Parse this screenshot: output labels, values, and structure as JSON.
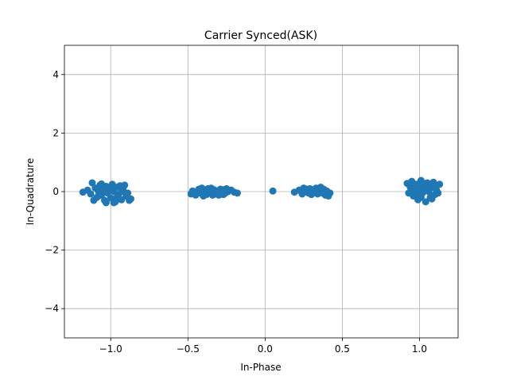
{
  "chart_data": {
    "type": "scatter",
    "title": "Carrier Synced(ASK)",
    "xlabel": "In-Phase",
    "ylabel": "In-Quadrature",
    "xlim": [
      -1.3,
      1.25
    ],
    "ylim": [
      -5,
      5
    ],
    "xticks": [
      -1.0,
      -0.5,
      0.0,
      0.5,
      1.0
    ],
    "xtick_labels": [
      "−1.0",
      "−0.5",
      "0.0",
      "0.5",
      "1.0"
    ],
    "yticks": [
      -4,
      -2,
      0,
      2,
      4
    ],
    "ytick_labels": [
      "−4",
      "−2",
      "0",
      "2",
      "4"
    ],
    "grid": true,
    "legend": "none",
    "marker_color": "#1f77b4",
    "series": [
      {
        "points": [
          [
            -1.18,
            -0.02
          ],
          [
            -1.15,
            0.05
          ],
          [
            -1.13,
            -0.08
          ],
          [
            -1.12,
            0.3
          ],
          [
            -1.1,
            0.12
          ],
          [
            -1.09,
            -0.2
          ],
          [
            -1.08,
            0.02
          ],
          [
            -1.07,
            0.22
          ],
          [
            -1.06,
            -0.12
          ],
          [
            -1.05,
            0.08
          ],
          [
            -1.04,
            -0.3
          ],
          [
            -1.03,
            0.18
          ],
          [
            -1.02,
            -0.05
          ],
          [
            -1.01,
            0.1
          ],
          [
            -1.0,
            -0.22
          ],
          [
            -0.99,
            0.25
          ],
          [
            -0.98,
            0.0
          ],
          [
            -0.97,
            -0.35
          ],
          [
            -0.96,
            0.15
          ],
          [
            -0.95,
            -0.1
          ],
          [
            -0.94,
            0.2
          ],
          [
            -0.93,
            -0.28
          ],
          [
            -0.92,
            0.05
          ],
          [
            -0.91,
            0.22
          ],
          [
            -0.9,
            -0.15
          ],
          [
            -0.89,
            -0.05
          ],
          [
            -0.88,
            -0.3
          ],
          [
            -0.87,
            -0.25
          ],
          [
            -1.11,
            -0.3
          ],
          [
            -1.06,
            0.26
          ],
          [
            -1.03,
            -0.38
          ],
          [
            -0.98,
            -0.38
          ],
          [
            -1.0,
            0.1
          ],
          [
            -0.96,
            -0.2
          ],
          [
            -1.08,
            -0.15
          ],
          [
            -0.93,
            0.0
          ],
          [
            -0.48,
            -0.08
          ],
          [
            -0.47,
            0.02
          ],
          [
            -0.45,
            -0.12
          ],
          [
            -0.43,
            0.08
          ],
          [
            -0.42,
            -0.05
          ],
          [
            -0.41,
            0.12
          ],
          [
            -0.4,
            -0.15
          ],
          [
            -0.39,
            0.05
          ],
          [
            -0.38,
            -0.1
          ],
          [
            -0.37,
            0.1
          ],
          [
            -0.36,
            -0.02
          ],
          [
            -0.35,
            0.12
          ],
          [
            -0.34,
            -0.12
          ],
          [
            -0.33,
            0.06
          ],
          [
            -0.32,
            -0.08
          ],
          [
            -0.31,
            0.02
          ],
          [
            -0.3,
            -0.12
          ],
          [
            -0.29,
            0.08
          ],
          [
            -0.28,
            -0.05
          ],
          [
            -0.27,
            0.06
          ],
          [
            -0.26,
            -0.06
          ],
          [
            -0.25,
            0.1
          ],
          [
            -0.24,
            0.0
          ],
          [
            -0.22,
            0.05
          ],
          [
            -0.2,
            -0.02
          ],
          [
            -0.18,
            -0.05
          ],
          [
            -0.36,
            0.0
          ],
          [
            -0.3,
            0.0
          ],
          [
            -0.34,
            0.05
          ],
          [
            -0.27,
            -0.1
          ],
          [
            0.05,
            0.02
          ],
          [
            0.19,
            -0.02
          ],
          [
            0.22,
            0.05
          ],
          [
            0.24,
            -0.08
          ],
          [
            0.25,
            0.12
          ],
          [
            0.26,
            0.0
          ],
          [
            0.27,
            0.08
          ],
          [
            0.28,
            -0.05
          ],
          [
            0.29,
            0.1
          ],
          [
            0.3,
            -0.1
          ],
          [
            0.31,
            0.05
          ],
          [
            0.32,
            -0.02
          ],
          [
            0.33,
            0.12
          ],
          [
            0.34,
            -0.08
          ],
          [
            0.35,
            0.05
          ],
          [
            0.36,
            0.15
          ],
          [
            0.37,
            -0.05
          ],
          [
            0.38,
            0.08
          ],
          [
            0.39,
            -0.12
          ],
          [
            0.4,
            0.02
          ],
          [
            0.41,
            -0.15
          ],
          [
            0.42,
            -0.05
          ],
          [
            0.3,
            0.02
          ],
          [
            0.34,
            0.0
          ],
          [
            0.38,
            -0.02
          ],
          [
            0.92,
            0.28
          ],
          [
            0.93,
            -0.05
          ],
          [
            0.94,
            0.15
          ],
          [
            0.95,
            0.35
          ],
          [
            0.96,
            -0.15
          ],
          [
            0.97,
            0.05
          ],
          [
            0.98,
            0.25
          ],
          [
            0.99,
            -0.28
          ],
          [
            1.0,
            0.12
          ],
          [
            1.01,
            0.38
          ],
          [
            1.02,
            -0.05
          ],
          [
            1.03,
            0.2
          ],
          [
            1.04,
            -0.35
          ],
          [
            1.05,
            0.3
          ],
          [
            1.06,
            0.0
          ],
          [
            1.07,
            -0.2
          ],
          [
            1.08,
            0.15
          ],
          [
            1.09,
            0.32
          ],
          [
            1.1,
            -0.1
          ],
          [
            1.11,
            0.05
          ],
          [
            1.12,
            -0.05
          ],
          [
            1.13,
            0.25
          ],
          [
            0.96,
            0.05
          ],
          [
            1.0,
            -0.1
          ],
          [
            1.04,
            0.1
          ],
          [
            1.08,
            -0.25
          ],
          [
            1.02,
            0.3
          ],
          [
            0.98,
            0.0
          ],
          [
            1.06,
            0.2
          ],
          [
            1.01,
            -0.2
          ],
          [
            0.94,
            -0.02
          ],
          [
            1.1,
            0.12
          ]
        ]
      }
    ]
  }
}
